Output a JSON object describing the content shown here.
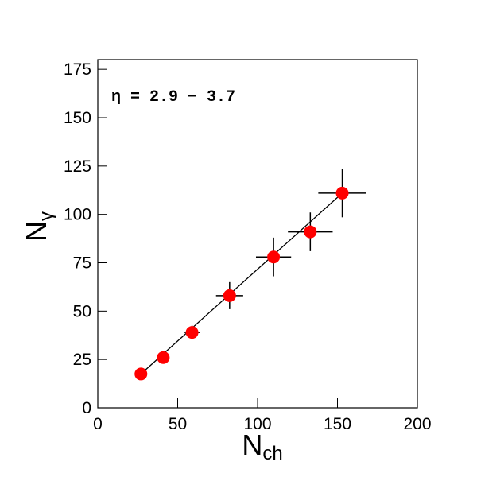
{
  "chart_data": {
    "type": "scatter",
    "annotation": "η = 2.9 − 3.7",
    "xlabel": {
      "main": "N",
      "sub": "ch"
    },
    "ylabel": {
      "main": "N",
      "sub": "γ"
    },
    "xlim": [
      0,
      200
    ],
    "xticks": [
      0,
      50,
      100,
      150,
      200
    ],
    "ylim": [
      0,
      180
    ],
    "yticks": [
      0,
      25,
      50,
      75,
      100,
      125,
      150,
      175
    ],
    "series": [
      {
        "color": "#ff0000",
        "x": [
          27,
          41,
          59,
          82.5,
          110,
          133,
          153
        ],
        "values": [
          17.5,
          26,
          39,
          58,
          78,
          91,
          111
        ],
        "xerr": [
          2,
          3,
          4.7,
          8.5,
          11,
          14,
          15
        ],
        "yerr": [
          1.5,
          2,
          3.5,
          7,
          10,
          10,
          12.5
        ]
      }
    ],
    "fit_line": {
      "x": [
        27,
        153
      ],
      "values": [
        17.5,
        111
      ]
    }
  }
}
